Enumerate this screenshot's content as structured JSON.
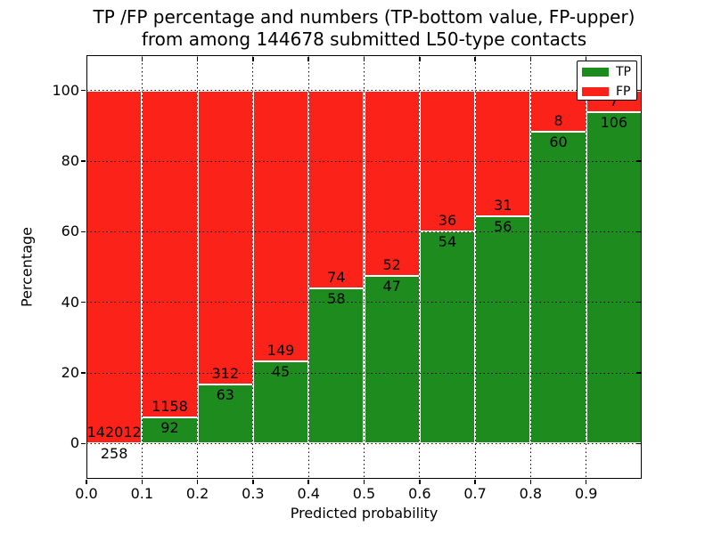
{
  "chart": {
    "title_line1": "TP /FP percentage and numbers (TP-bottom value, FP-upper)",
    "title_line2": "from among 144678 submitted L50-type contacts"
  },
  "chart_data": {
    "type": "bar",
    "subtype": "stacked-percentage-histogram",
    "title": "TP /FP percentage and numbers (TP-bottom value, FP-upper)\nfrom among 144678 submitted L50-type contacts",
    "xlabel": "Predicted probability",
    "ylabel": "Percentage",
    "total_contacts": 144678,
    "xlim": [
      0.0,
      1.0
    ],
    "ylim": [
      -10,
      110
    ],
    "bin_width": 0.1,
    "x_tick_labels": [
      "0.0",
      "0.1",
      "0.2",
      "0.3",
      "0.4",
      "0.5",
      "0.6",
      "0.7",
      "0.8",
      "0.9"
    ],
    "y_tick_values": [
      0,
      20,
      40,
      60,
      80,
      100
    ],
    "grid_style": "dotted",
    "legend_position": "upper right",
    "categories": [
      "0.0-0.1",
      "0.1-0.2",
      "0.2-0.3",
      "0.3-0.4",
      "0.4-0.5",
      "0.5-0.6",
      "0.6-0.7",
      "0.7-0.8",
      "0.8-0.9",
      "0.9-1.0"
    ],
    "series": [
      {
        "name": "TP",
        "color": "#1e8b1e",
        "counts": [
          258,
          92,
          63,
          45,
          58,
          47,
          54,
          56,
          60,
          106
        ]
      },
      {
        "name": "FP",
        "color": "#fb221a",
        "counts": [
          142012,
          1158,
          312,
          149,
          74,
          52,
          36,
          31,
          8,
          7
        ]
      }
    ],
    "tp_percentages": [
      0.18,
      7.36,
      16.8,
      23.2,
      43.94,
      47.47,
      60.0,
      64.37,
      88.24,
      93.81
    ],
    "legend": [
      {
        "label": "TP",
        "color": "#1e8b1e"
      },
      {
        "label": "FP",
        "color": "#fb221a"
      }
    ]
  }
}
